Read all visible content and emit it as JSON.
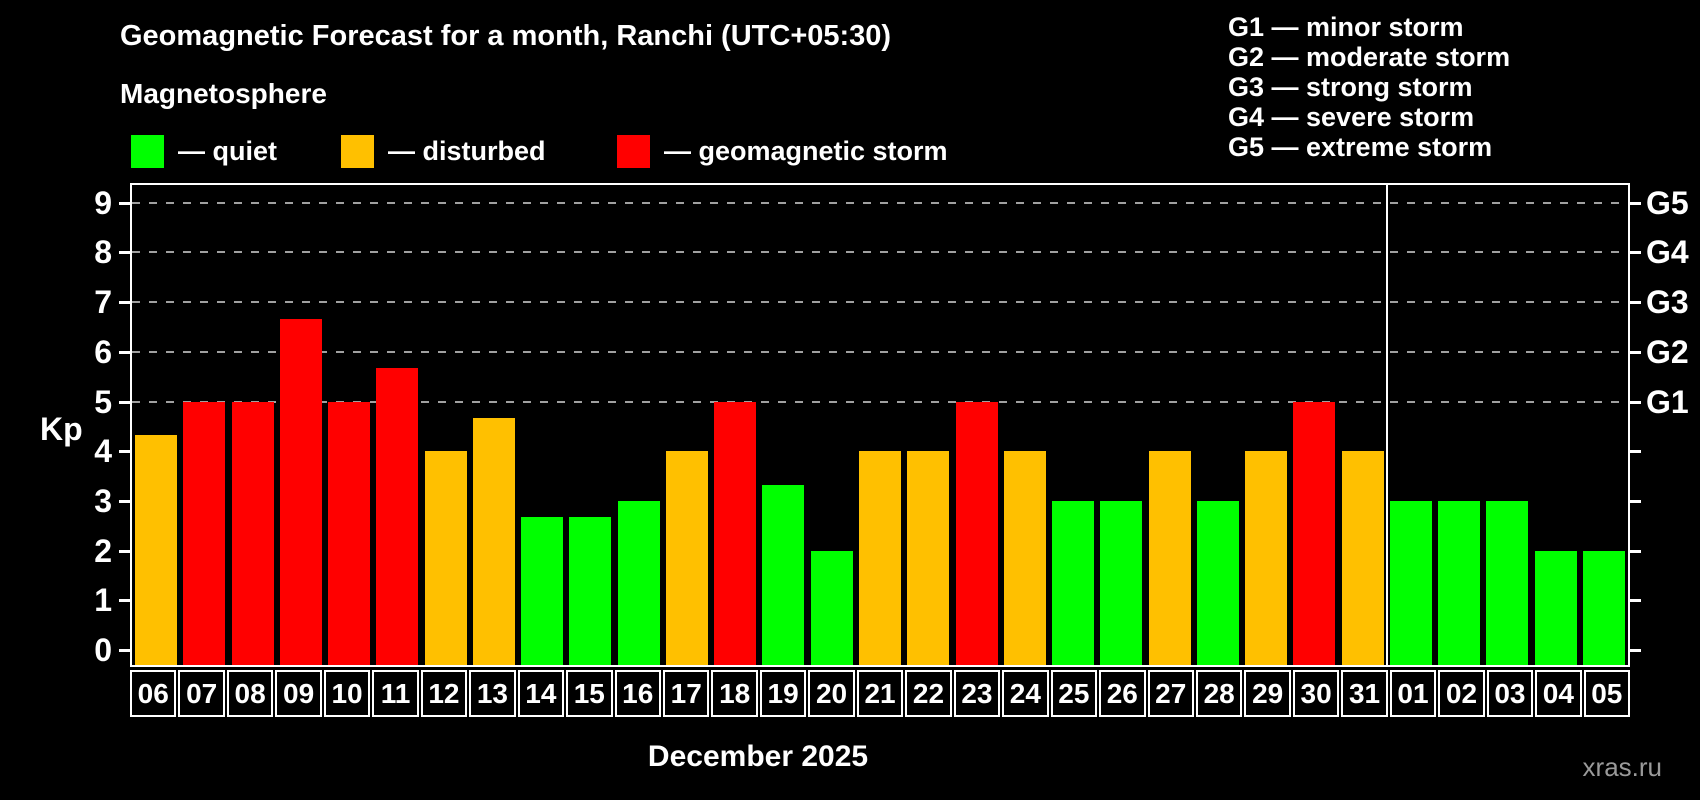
{
  "header": {
    "title": "Geomagnetic Forecast for a month, Ranchi (UTC+05:30)",
    "subtitle": "Magnetosphere"
  },
  "legend": [
    {
      "key": "quiet",
      "label": "— quiet",
      "color": "#00ff00",
      "x": 131
    },
    {
      "key": "disturbed",
      "label": "— disturbed",
      "color": "#ffc000",
      "x": 341
    },
    {
      "key": "storm",
      "label": "— geomagnetic storm",
      "color": "#ff0000",
      "x": 617
    }
  ],
  "g_legend": [
    "G1 — minor storm",
    "G2 — moderate storm",
    "G3 — strong storm",
    "G4 — severe storm",
    "G5 — extreme storm"
  ],
  "chart_data": {
    "type": "bar",
    "ylabel": "Kp",
    "ylim": [
      0,
      9
    ],
    "yticks": [
      "0",
      "1",
      "2",
      "3",
      "4",
      "5",
      "6",
      "7",
      "8",
      "9"
    ],
    "right_axis_labels": [
      "G1",
      "G2",
      "G3",
      "G4",
      "G5"
    ],
    "right_axis_levels": [
      5,
      6,
      7,
      8,
      9
    ],
    "gridline_levels": [
      5,
      6,
      7,
      8,
      9
    ],
    "grid": "dashed",
    "categories": [
      "06",
      "07",
      "08",
      "09",
      "10",
      "11",
      "12",
      "13",
      "14",
      "15",
      "16",
      "17",
      "18",
      "19",
      "20",
      "21",
      "22",
      "23",
      "24",
      "25",
      "26",
      "27",
      "28",
      "29",
      "30",
      "31",
      "01",
      "02",
      "03",
      "04",
      "05"
    ],
    "values": [
      4.33,
      5,
      5,
      6.67,
      5,
      5.67,
      4,
      4.67,
      2.67,
      2.67,
      3,
      4,
      5,
      3.33,
      2,
      4,
      4,
      5,
      4,
      3,
      3,
      4,
      3,
      4,
      5,
      4,
      3,
      3,
      3,
      2,
      2
    ],
    "statuses": [
      "disturbed",
      "storm",
      "storm",
      "storm",
      "storm",
      "storm",
      "disturbed",
      "disturbed",
      "quiet",
      "quiet",
      "quiet",
      "disturbed",
      "storm",
      "quiet",
      "quiet",
      "disturbed",
      "disturbed",
      "storm",
      "disturbed",
      "quiet",
      "quiet",
      "disturbed",
      "quiet",
      "disturbed",
      "storm",
      "disturbed",
      "quiet",
      "quiet",
      "quiet",
      "quiet",
      "quiet"
    ],
    "status_colors": {
      "quiet": "#00ff00",
      "disturbed": "#ffc000",
      "storm": "#ff0000"
    },
    "grid_color": "#a0a0a0",
    "month_divider_after_index": 25,
    "month_label": "December 2025"
  },
  "watermark": "xras.ru"
}
